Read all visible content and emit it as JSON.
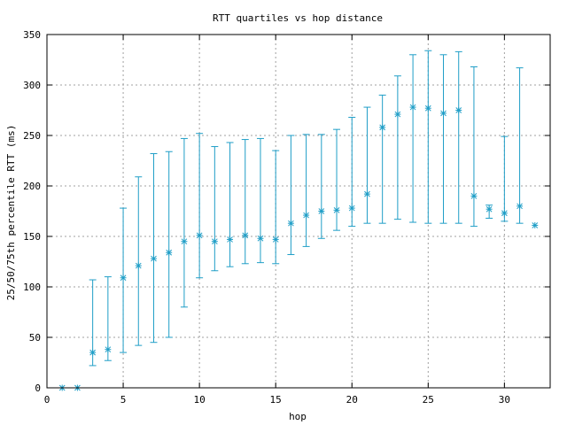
{
  "chart_data": {
    "type": "scatter",
    "title": "RTT quartiles vs hop distance",
    "xlabel": "hop",
    "ylabel": "25/50/75th percentile RTT (ms)",
    "xlim": [
      0,
      33
    ],
    "ylim": [
      0,
      350
    ],
    "xticks": [
      0,
      5,
      10,
      15,
      20,
      25,
      30
    ],
    "yticks": [
      0,
      50,
      100,
      150,
      200,
      250,
      300,
      350
    ],
    "grid": true,
    "color": "#1f9ec7",
    "marker": "asterisk",
    "series": [
      {
        "points": [
          {
            "x": 1,
            "p25": 0,
            "p50": 0,
            "p75": 0
          },
          {
            "x": 2,
            "p25": 0,
            "p50": 0,
            "p75": 0
          },
          {
            "x": 3,
            "p25": 22,
            "p50": 35,
            "p75": 107
          },
          {
            "x": 4,
            "p25": 27,
            "p50": 38,
            "p75": 110
          },
          {
            "x": 5,
            "p25": 35,
            "p50": 109,
            "p75": 178
          },
          {
            "x": 6,
            "p25": 42,
            "p50": 121,
            "p75": 209
          },
          {
            "x": 7,
            "p25": 45,
            "p50": 128,
            "p75": 232
          },
          {
            "x": 8,
            "p25": 50,
            "p50": 134,
            "p75": 234
          },
          {
            "x": 9,
            "p25": 80,
            "p50": 145,
            "p75": 247
          },
          {
            "x": 10,
            "p25": 109,
            "p50": 151,
            "p75": 252
          },
          {
            "x": 11,
            "p25": 116,
            "p50": 145,
            "p75": 239
          },
          {
            "x": 12,
            "p25": 120,
            "p50": 147,
            "p75": 243
          },
          {
            "x": 13,
            "p25": 123,
            "p50": 151,
            "p75": 246
          },
          {
            "x": 14,
            "p25": 124,
            "p50": 148,
            "p75": 247
          },
          {
            "x": 15,
            "p25": 123,
            "p50": 147,
            "p75": 235
          },
          {
            "x": 16,
            "p25": 132,
            "p50": 163,
            "p75": 250
          },
          {
            "x": 17,
            "p25": 140,
            "p50": 171,
            "p75": 251
          },
          {
            "x": 18,
            "p25": 148,
            "p50": 175,
            "p75": 251
          },
          {
            "x": 19,
            "p25": 156,
            "p50": 176,
            "p75": 256
          },
          {
            "x": 20,
            "p25": 160,
            "p50": 178,
            "p75": 268
          },
          {
            "x": 21,
            "p25": 163,
            "p50": 192,
            "p75": 278
          },
          {
            "x": 22,
            "p25": 163,
            "p50": 258,
            "p75": 290
          },
          {
            "x": 23,
            "p25": 167,
            "p50": 271,
            "p75": 309
          },
          {
            "x": 24,
            "p25": 164,
            "p50": 278,
            "p75": 330
          },
          {
            "x": 25,
            "p25": 163,
            "p50": 277,
            "p75": 334
          },
          {
            "x": 26,
            "p25": 163,
            "p50": 272,
            "p75": 330
          },
          {
            "x": 27,
            "p25": 163,
            "p50": 275,
            "p75": 333
          },
          {
            "x": 28,
            "p25": 160,
            "p50": 190,
            "p75": 318
          },
          {
            "x": 29,
            "p25": 168,
            "p50": 177,
            "p75": 181
          },
          {
            "x": 30,
            "p25": 165,
            "p50": 173,
            "p75": 249
          },
          {
            "x": 31,
            "p25": 163,
            "p50": 180,
            "p75": 317
          },
          {
            "x": 32,
            "p25": 161,
            "p50": 161,
            "p75": 161
          }
        ]
      }
    ]
  }
}
